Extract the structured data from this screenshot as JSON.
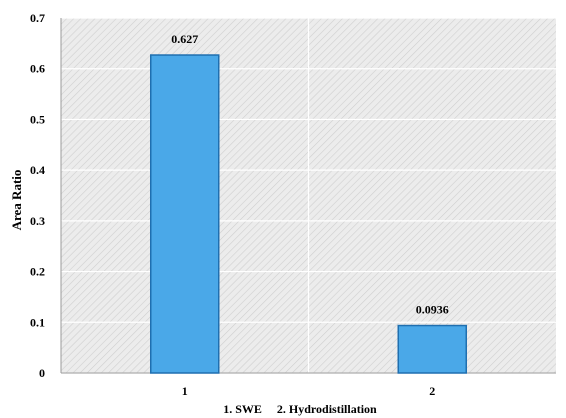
{
  "chart_data": {
    "type": "bar",
    "categories": [
      "1",
      "2"
    ],
    "values": [
      0.627,
      0.0936
    ],
    "data_labels": [
      "0.627",
      "0.0936"
    ],
    "xlabel": "1. SWE     2. Hydrodistillation",
    "ylabel": "Area Ratio",
    "ylim": [
      0,
      0.7
    ],
    "yticks": [
      0,
      0.1,
      0.2,
      0.3,
      0.4,
      0.5,
      0.6,
      0.7
    ],
    "ytick_labels": [
      "0",
      "0.1",
      "0.2",
      "0.3",
      "0.4",
      "0.5",
      "0.6",
      "0.7"
    ],
    "grid": true,
    "legend": "none",
    "colors": {
      "bar_fill": "#4aa8e8",
      "bar_stroke": "#1f6fb0",
      "plot_background": "#e9e9e9",
      "hatch": "#cfcfcf",
      "gridline": "#ffffff"
    }
  }
}
